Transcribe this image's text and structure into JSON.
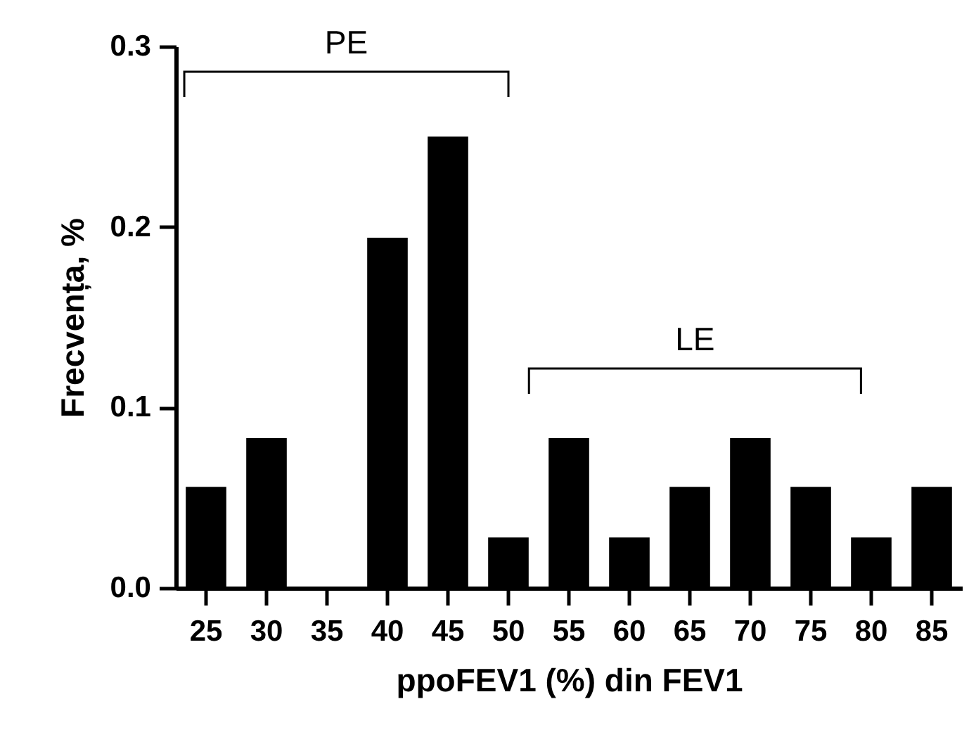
{
  "chart_data": {
    "type": "bar",
    "categories": [
      "25",
      "30",
      "35",
      "40",
      "45",
      "50",
      "55",
      "60",
      "65",
      "70",
      "75",
      "80",
      "85"
    ],
    "values": [
      0.056,
      0.083,
      0,
      0.194,
      0.25,
      0.028,
      0.083,
      0.028,
      0.056,
      0.083,
      0.056,
      0.028,
      0.056
    ],
    "color": "#000000",
    "xlabel": "ppoFEV1 (%) din FEV1",
    "ylabel": "Frecvența, %",
    "ylim": [
      0,
      0.3
    ],
    "yticks": [
      {
        "value": 0,
        "label": "0.0"
      },
      0.1,
      0.2,
      0.3
    ],
    "annotations": [
      "PE",
      "LE"
    ],
    "grid": false
  }
}
